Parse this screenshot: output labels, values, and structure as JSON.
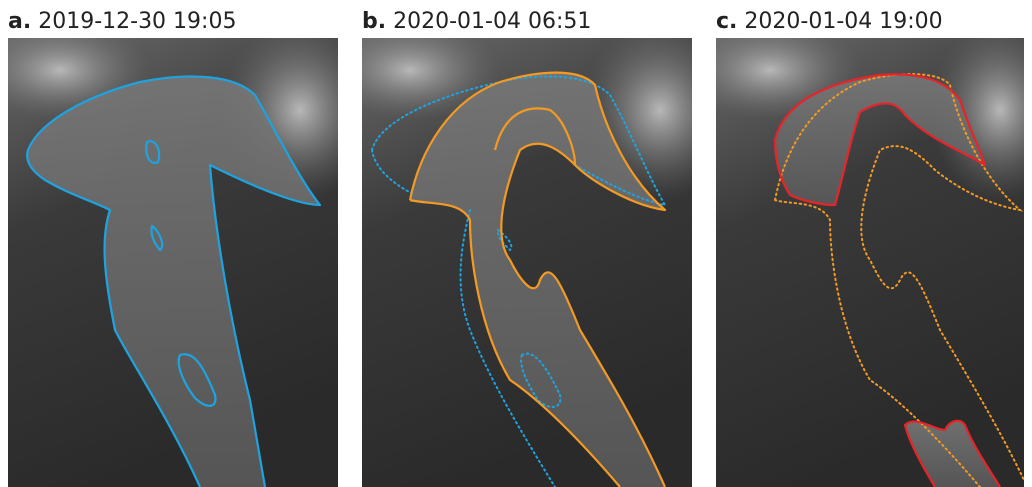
{
  "panels": [
    {
      "letter": "a.",
      "timestamp": "2019-12-30 19:05"
    },
    {
      "letter": "b.",
      "timestamp": "2020-01-04 06:51"
    },
    {
      "letter": "c.",
      "timestamp": "2020-01-04 19:00"
    }
  ]
}
